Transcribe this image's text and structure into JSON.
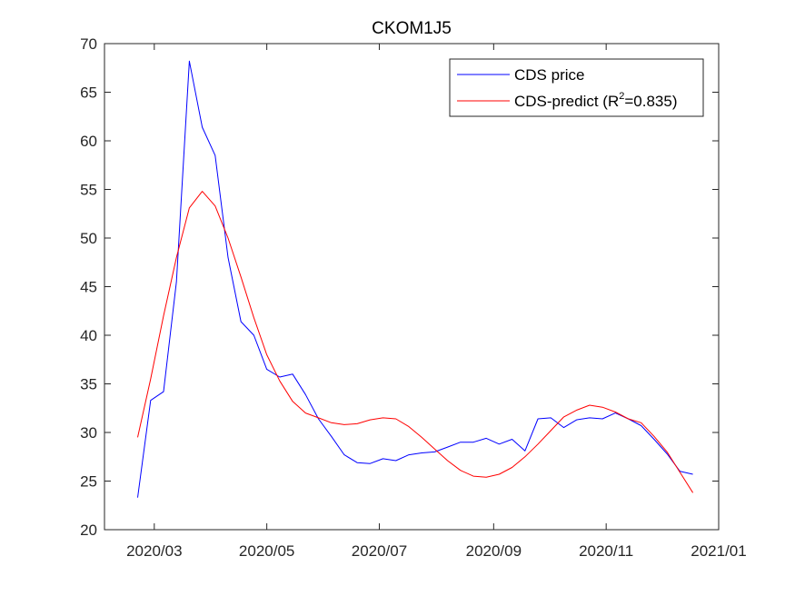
{
  "chart_data": {
    "type": "line",
    "title": "CKOM1J5",
    "xlabel": "",
    "ylabel": "",
    "x_axis": {
      "type": "date",
      "range": [
        "2020-02-03",
        "2021-01-01"
      ],
      "ticks": [
        {
          "date": "2020-03-01",
          "label": "2020/03"
        },
        {
          "date": "2020-05-01",
          "label": "2020/05"
        },
        {
          "date": "2020-07-01",
          "label": "2020/07"
        },
        {
          "date": "2020-09-01",
          "label": "2020/09"
        },
        {
          "date": "2020-11-01",
          "label": "2020/11"
        },
        {
          "date": "2021-01-01",
          "label": "2021/01"
        }
      ]
    },
    "y_axis": {
      "range": [
        20,
        70
      ],
      "ticks": [
        20,
        25,
        30,
        35,
        40,
        45,
        50,
        55,
        60,
        65,
        70
      ]
    },
    "grid": false,
    "legend_placement": "top-right",
    "series": [
      {
        "name": "CDS price",
        "color": "#0000ff",
        "points": [
          [
            "2020-02-21",
            23.3
          ],
          [
            "2020-02-28",
            33.3
          ],
          [
            "2020-03-06",
            34.2
          ],
          [
            "2020-03-13",
            45.5
          ],
          [
            "2020-03-20",
            68.2
          ],
          [
            "2020-03-27",
            61.4
          ],
          [
            "2020-04-03",
            58.5
          ],
          [
            "2020-04-10",
            48.0
          ],
          [
            "2020-04-17",
            41.4
          ],
          [
            "2020-04-24",
            40.0
          ],
          [
            "2020-05-01",
            36.5
          ],
          [
            "2020-05-08",
            35.7
          ],
          [
            "2020-05-15",
            36.0
          ],
          [
            "2020-05-22",
            33.9
          ],
          [
            "2020-05-29",
            31.4
          ],
          [
            "2020-06-05",
            29.6
          ],
          [
            "2020-06-12",
            27.7
          ],
          [
            "2020-06-19",
            26.9
          ],
          [
            "2020-06-26",
            26.8
          ],
          [
            "2020-07-03",
            27.3
          ],
          [
            "2020-07-10",
            27.1
          ],
          [
            "2020-07-17",
            27.7
          ],
          [
            "2020-07-24",
            27.9
          ],
          [
            "2020-07-31",
            28.0
          ],
          [
            "2020-08-07",
            28.5
          ],
          [
            "2020-08-14",
            29.0
          ],
          [
            "2020-08-21",
            29.0
          ],
          [
            "2020-08-28",
            29.4
          ],
          [
            "2020-09-04",
            28.8
          ],
          [
            "2020-09-11",
            29.3
          ],
          [
            "2020-09-18",
            28.1
          ],
          [
            "2020-09-25",
            31.4
          ],
          [
            "2020-10-02",
            31.5
          ],
          [
            "2020-10-09",
            30.5
          ],
          [
            "2020-10-16",
            31.3
          ],
          [
            "2020-10-23",
            31.5
          ],
          [
            "2020-10-30",
            31.4
          ],
          [
            "2020-11-06",
            32.0
          ],
          [
            "2020-11-13",
            31.4
          ],
          [
            "2020-11-20",
            30.7
          ],
          [
            "2020-11-27",
            29.3
          ],
          [
            "2020-12-04",
            27.8
          ],
          [
            "2020-12-11",
            26.0
          ],
          [
            "2020-12-18",
            25.7
          ]
        ]
      },
      {
        "name": "CDS-predict (R²=0.835)",
        "legend_label": {
          "base": "CDS-predict (R",
          "sup": "2",
          "tail": "=0.835)"
        },
        "color": "#ff0000",
        "points": [
          [
            "2020-02-21",
            29.5
          ],
          [
            "2020-02-28",
            35.5
          ],
          [
            "2020-03-06",
            42.0
          ],
          [
            "2020-03-13",
            48.0
          ],
          [
            "2020-03-20",
            53.1
          ],
          [
            "2020-03-27",
            54.8
          ],
          [
            "2020-04-03",
            53.3
          ],
          [
            "2020-04-10",
            50.0
          ],
          [
            "2020-04-17",
            46.0
          ],
          [
            "2020-04-24",
            41.8
          ],
          [
            "2020-05-01",
            38.0
          ],
          [
            "2020-05-08",
            35.3
          ],
          [
            "2020-05-15",
            33.2
          ],
          [
            "2020-05-22",
            32.0
          ],
          [
            "2020-05-29",
            31.5
          ],
          [
            "2020-06-05",
            31.0
          ],
          [
            "2020-06-12",
            30.8
          ],
          [
            "2020-06-19",
            30.9
          ],
          [
            "2020-06-26",
            31.3
          ],
          [
            "2020-07-03",
            31.5
          ],
          [
            "2020-07-10",
            31.4
          ],
          [
            "2020-07-17",
            30.6
          ],
          [
            "2020-07-24",
            29.5
          ],
          [
            "2020-07-31",
            28.3
          ],
          [
            "2020-08-07",
            27.1
          ],
          [
            "2020-08-14",
            26.1
          ],
          [
            "2020-08-21",
            25.5
          ],
          [
            "2020-08-28",
            25.4
          ],
          [
            "2020-09-04",
            25.7
          ],
          [
            "2020-09-11",
            26.4
          ],
          [
            "2020-09-18",
            27.5
          ],
          [
            "2020-09-25",
            28.8
          ],
          [
            "2020-10-02",
            30.2
          ],
          [
            "2020-10-09",
            31.6
          ],
          [
            "2020-10-16",
            32.3
          ],
          [
            "2020-10-23",
            32.8
          ],
          [
            "2020-10-30",
            32.6
          ],
          [
            "2020-11-06",
            32.1
          ],
          [
            "2020-11-13",
            31.4
          ],
          [
            "2020-11-20",
            31.0
          ],
          [
            "2020-11-27",
            29.6
          ],
          [
            "2020-12-04",
            28.0
          ],
          [
            "2020-12-11",
            25.9
          ],
          [
            "2020-12-18",
            23.8
          ]
        ]
      }
    ]
  }
}
